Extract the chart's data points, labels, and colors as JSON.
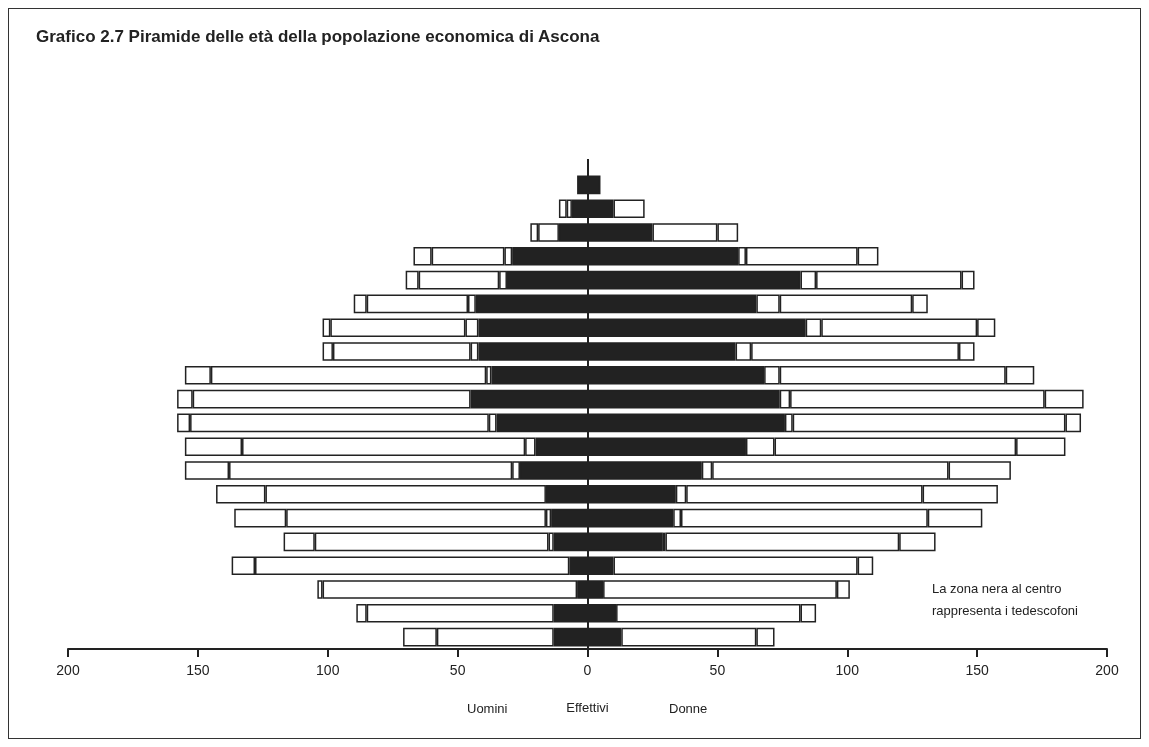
{
  "chart_data": {
    "type": "bar",
    "orientation": "horizontal",
    "stacked": true,
    "title": "Grafico 2.7 Piramide delle età della popolazione economica di Ascona",
    "xlabel": "Effettivi",
    "annotations": [
      "Uomini",
      "Donne",
      "La zona nera al centro rappresenta i tedescofoni"
    ],
    "categories": [
      null,
      null,
      null,
      null,
      null,
      null,
      null,
      null,
      null,
      null,
      null,
      null,
      null,
      null,
      null,
      null,
      null,
      null,
      null,
      null
    ],
    "series": [
      {
        "color": "#222222",
        "values": [
          -4,
          -6,
          -11,
          -29,
          -31,
          -43,
          -42,
          -42,
          -37,
          -45,
          -35,
          -20,
          -26,
          -16,
          -14,
          -13,
          -7,
          -4,
          -13,
          -13
        ]
      },
      {
        "color": "#ffffff",
        "values": [
          0,
          0,
          0,
          -3,
          -3,
          -3,
          -5,
          -3,
          -2,
          0,
          -3,
          -4,
          -3,
          0,
          -2,
          -2,
          0,
          0,
          0,
          0
        ]
      },
      {
        "color": "#ffffff",
        "values": [
          0,
          -2,
          -8,
          -28,
          -31,
          -39,
          -52,
          -53,
          -106,
          -107,
          -115,
          -109,
          -109,
          -108,
          -100,
          -90,
          -121,
          -98,
          -72,
          -45
        ]
      },
      {
        "color": "#ffffff",
        "values": [
          0,
          -3,
          -3,
          -7,
          -5,
          -5,
          -3,
          -4,
          -10,
          -6,
          -5,
          -22,
          -17,
          -19,
          -20,
          -12,
          -9,
          -2,
          -4,
          -13
        ]
      },
      {
        "color": "#222222",
        "values": [
          5,
          10,
          25,
          58,
          82,
          65,
          84,
          57,
          68,
          74,
          76,
          61,
          44,
          34,
          33,
          29,
          10,
          6,
          11,
          13
        ]
      },
      {
        "color": "#ffffff",
        "values": [
          0,
          0,
          0,
          3,
          6,
          9,
          6,
          6,
          6,
          4,
          3,
          11,
          4,
          4,
          3,
          1,
          0,
          0,
          0,
          0
        ]
      },
      {
        "color": "#ffffff",
        "values": [
          0,
          12,
          25,
          43,
          56,
          51,
          60,
          80,
          87,
          98,
          105,
          93,
          91,
          91,
          95,
          90,
          94,
          90,
          71,
          52
        ]
      },
      {
        "color": "#ffffff",
        "values": [
          0,
          0,
          8,
          8,
          5,
          6,
          7,
          6,
          11,
          15,
          6,
          19,
          24,
          29,
          21,
          14,
          6,
          5,
          6,
          7
        ]
      }
    ],
    "xlim": [
      -200,
      200
    ],
    "xticks": [
      {
        "value": -200,
        "label": "200"
      },
      {
        "value": -150,
        "label": "150"
      },
      {
        "value": -100,
        "label": "100"
      },
      {
        "value": -50,
        "label": "50"
      },
      0,
      50,
      100,
      150,
      200
    ],
    "tick_labels": "x",
    "grid": false,
    "legend": false
  }
}
